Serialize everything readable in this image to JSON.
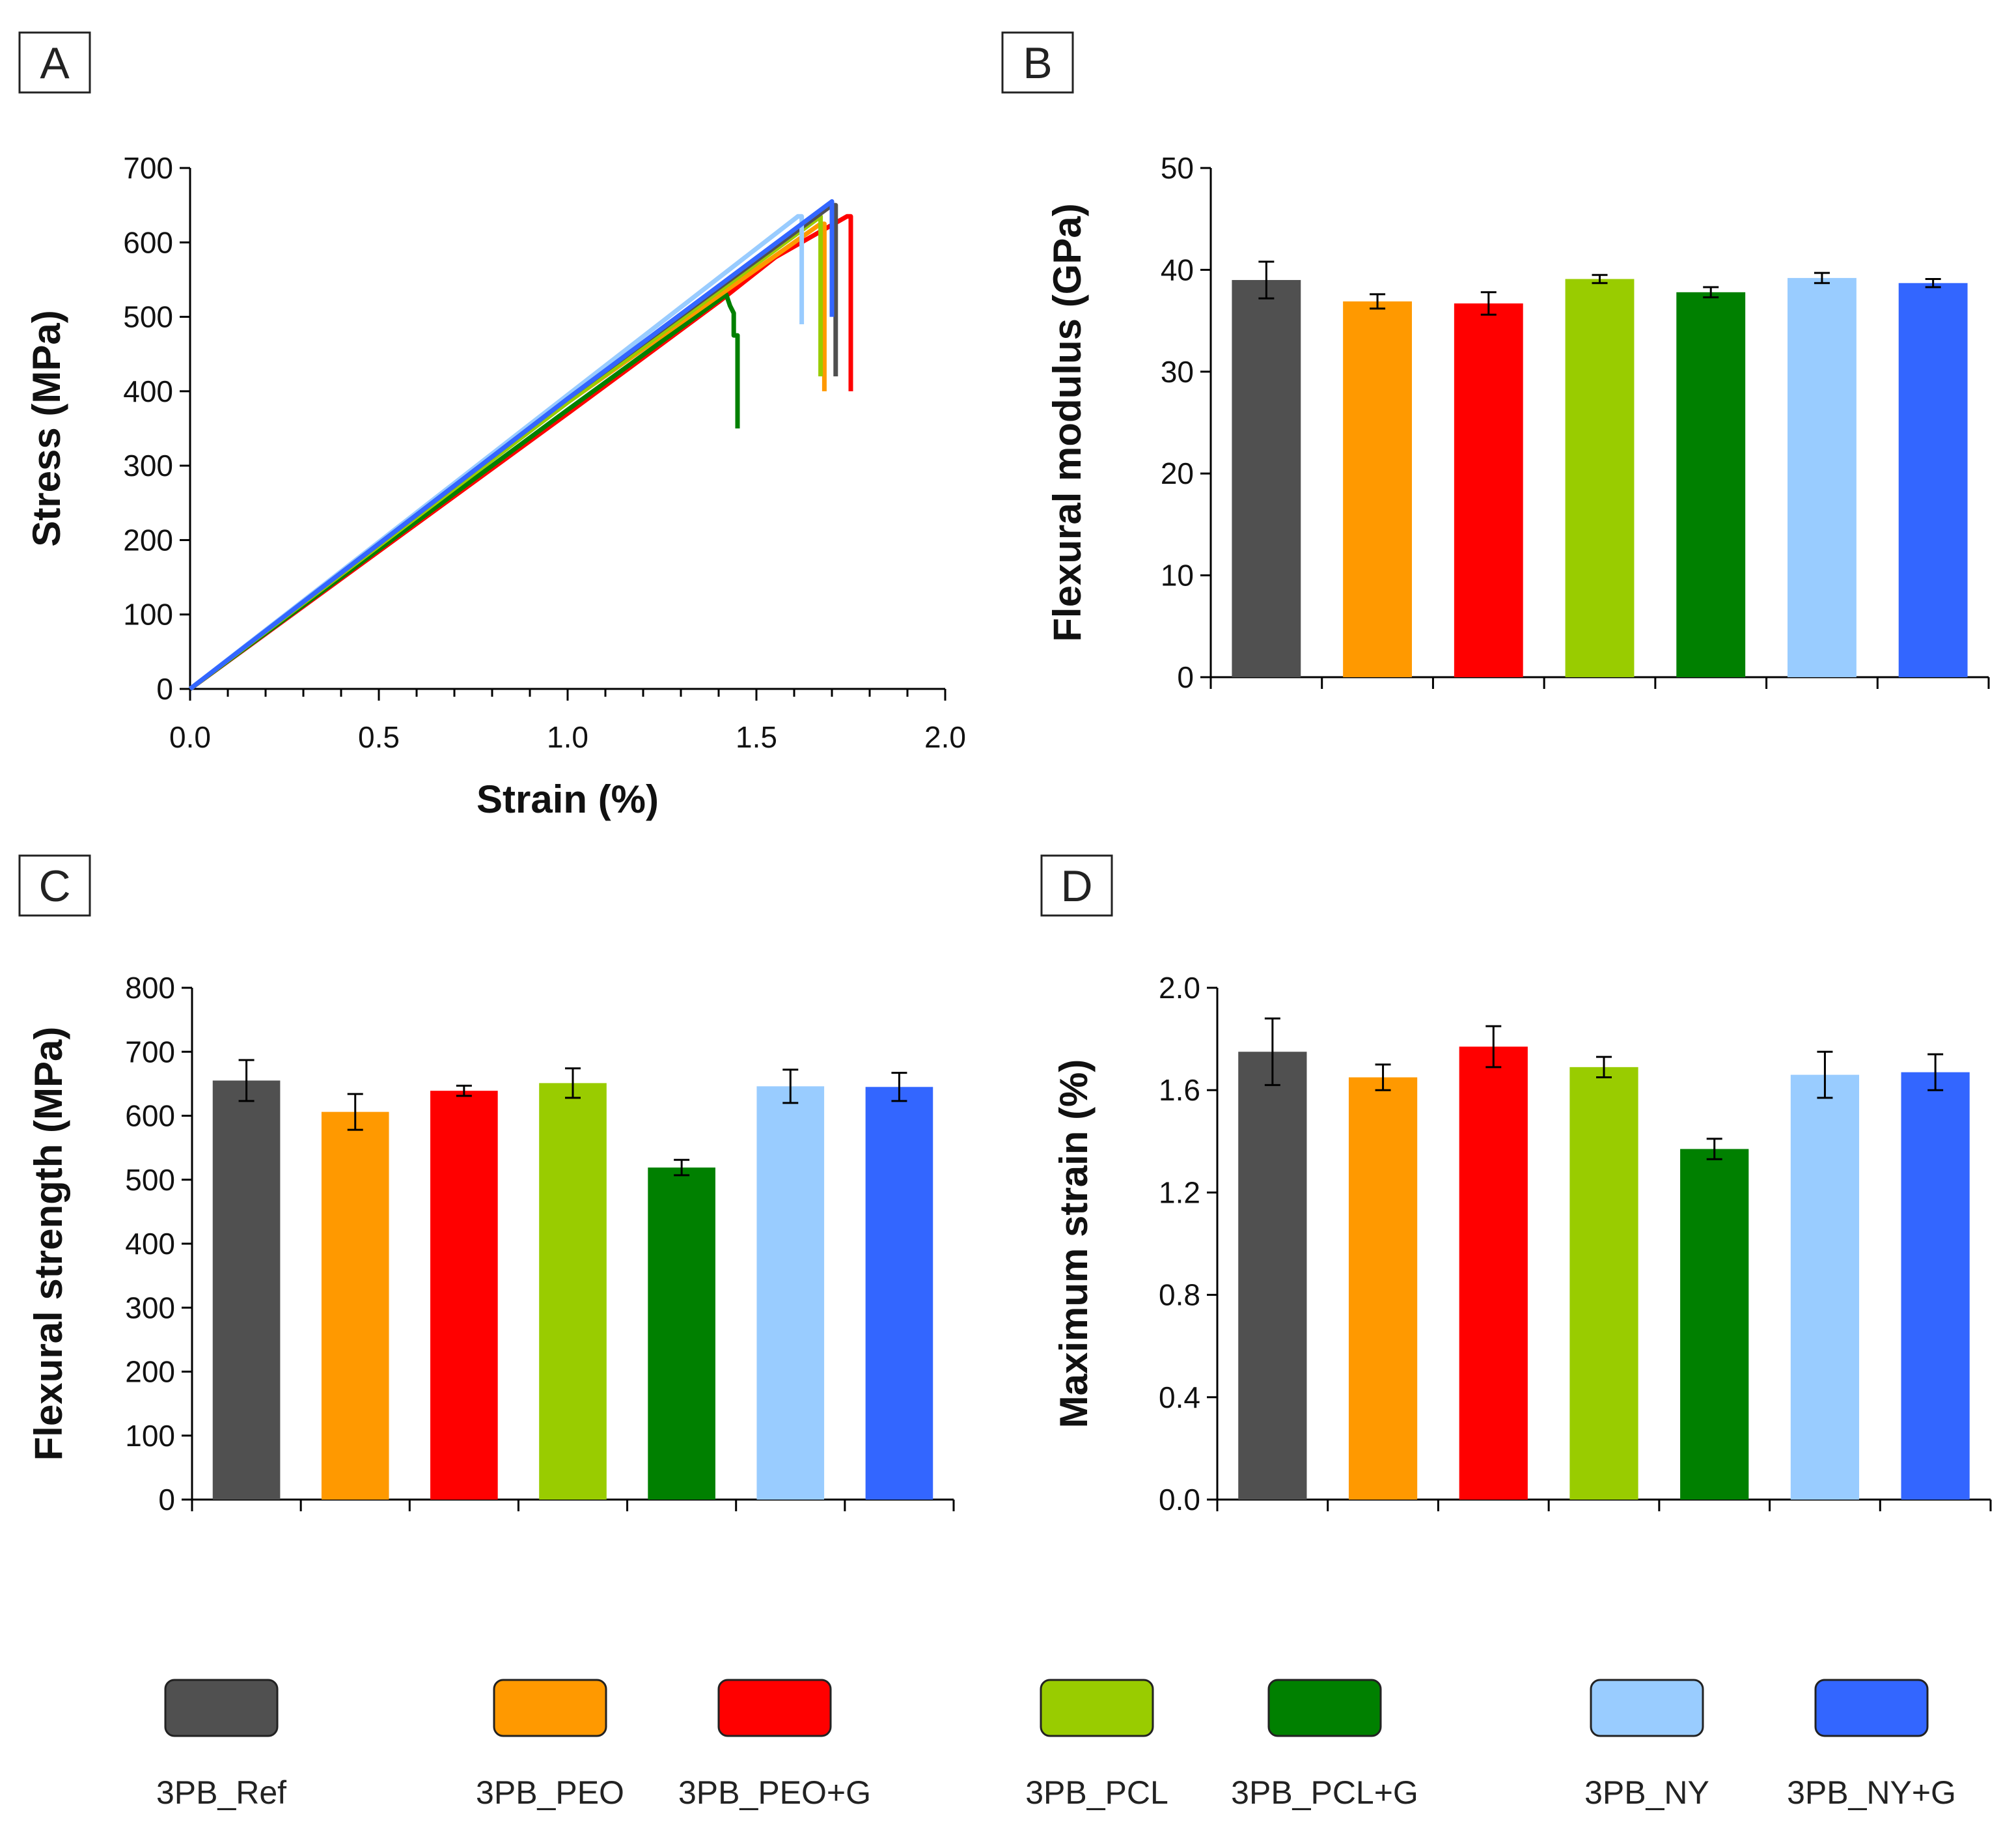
{
  "series_colors": {
    "3PB_Ref": "#505050",
    "3PB_PEO": "#FF9900",
    "3PB_PEO+G": "#FF0000",
    "3PB_PCL": "#99CC00",
    "3PB_PCL+G": "#008000",
    "3PB_NY": "#99CCFF",
    "3PB_NY+G": "#3366FF"
  },
  "legend": [
    "3PB_Ref",
    "3PB_PEO",
    "3PB_PEO+G",
    "3PB_PCL",
    "3PB_PCL+G",
    "3PB_NY",
    "3PB_NY+G"
  ],
  "chart_data": [
    {
      "panel": "A",
      "type": "line",
      "xlabel": "Strain (%)",
      "ylabel": "Stress (MPa)",
      "xlim": [
        0,
        2.0
      ],
      "ylim": [
        0,
        700
      ],
      "xticks": [
        "0.0",
        "0.5",
        "1.0",
        "1.5",
        "2.0"
      ],
      "yticks": [
        "0",
        "100",
        "200",
        "300",
        "400",
        "500",
        "600",
        "700"
      ],
      "series": [
        {
          "name": "3PB_PEO+G",
          "x": [
            0,
            1.0,
            1.4,
            1.55,
            1.74,
            1.75,
            1.75
          ],
          "y": [
            0,
            370,
            520,
            580,
            635,
            635,
            400
          ]
        },
        {
          "name": "3PB_PCL+G",
          "x": [
            0,
            1.0,
            1.42,
            1.43,
            1.44,
            1.44,
            1.45,
            1.45
          ],
          "y": [
            0,
            375,
            530,
            515,
            505,
            475,
            475,
            350
          ]
        },
        {
          "name": "3PB_PEO",
          "x": [
            0,
            1.0,
            1.67,
            1.68,
            1.68
          ],
          "y": [
            0,
            385,
            625,
            625,
            400
          ]
        },
        {
          "name": "3PB_PCL",
          "x": [
            0,
            1.0,
            1.67,
            1.67,
            1.67
          ],
          "y": [
            0,
            385,
            635,
            635,
            420
          ]
        },
        {
          "name": "3PB_Ref",
          "x": [
            0,
            1.0,
            1.7,
            1.71,
            1.71
          ],
          "y": [
            0,
            390,
            650,
            650,
            420
          ]
        },
        {
          "name": "3PB_NY",
          "x": [
            0,
            1.0,
            1.61,
            1.62,
            1.62
          ],
          "y": [
            0,
            395,
            635,
            635,
            490
          ]
        },
        {
          "name": "3PB_NY+G",
          "x": [
            0,
            1.0,
            1.7,
            1.7,
            1.7
          ],
          "y": [
            0,
            390,
            655,
            655,
            500
          ]
        }
      ]
    },
    {
      "panel": "B",
      "type": "bar",
      "ylabel": "Flexural modulus (GPa)",
      "ylim": [
        0,
        50
      ],
      "yticks": [
        "0",
        "10",
        "20",
        "30",
        "40",
        "50"
      ],
      "categories": [
        "3PB_Ref",
        "3PB_PEO",
        "3PB_PEO+G",
        "3PB_PCL",
        "3PB_PCL+G",
        "3PB_NY",
        "3PB_NY+G"
      ],
      "values": [
        39.0,
        36.9,
        36.7,
        39.1,
        37.8,
        39.2,
        38.7
      ],
      "errors": [
        1.8,
        0.7,
        1.1,
        0.4,
        0.5,
        0.5,
        0.4
      ]
    },
    {
      "panel": "C",
      "type": "bar",
      "ylabel": "Flexural strength (MPa)",
      "ylim": [
        0,
        800
      ],
      "yticks": [
        "0",
        "100",
        "200",
        "300",
        "400",
        "500",
        "600",
        "700",
        "800"
      ],
      "categories": [
        "3PB_Ref",
        "3PB_PEO",
        "3PB_PEO+G",
        "3PB_PCL",
        "3PB_PCL+G",
        "3PB_NY",
        "3PB_NY+G"
      ],
      "values": [
        655,
        606,
        639,
        651,
        519,
        646,
        645
      ],
      "errors": [
        32,
        28,
        8,
        23,
        12,
        26,
        22
      ]
    },
    {
      "panel": "D",
      "type": "bar",
      "ylabel": "Maximum strain (%)",
      "ylim": [
        0,
        2.0
      ],
      "yticks": [
        "0.0",
        "0.4",
        "0.8",
        "1.2",
        "1.6",
        "2.0"
      ],
      "categories": [
        "3PB_Ref",
        "3PB_PEO",
        "3PB_PEO+G",
        "3PB_PCL",
        "3PB_PCL+G",
        "3PB_NY",
        "3PB_NY+G"
      ],
      "values": [
        1.75,
        1.65,
        1.77,
        1.69,
        1.37,
        1.66,
        1.67
      ],
      "errors": [
        0.13,
        0.05,
        0.08,
        0.04,
        0.04,
        0.09,
        0.07
      ]
    }
  ]
}
